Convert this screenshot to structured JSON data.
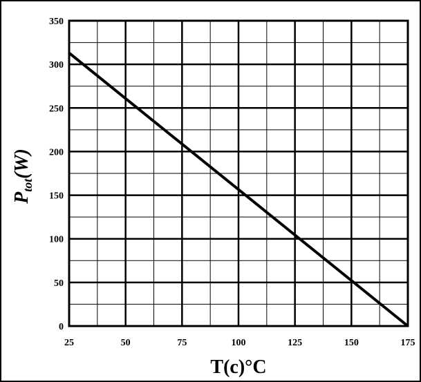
{
  "chart_data": {
    "type": "line",
    "x_ticks": [
      "25",
      "50",
      "75",
      "100",
      "125",
      "150",
      "175"
    ],
    "y_ticks": [
      "0",
      "50",
      "100",
      "150",
      "200",
      "250",
      "300",
      "350"
    ],
    "xlim": [
      25,
      175
    ],
    "ylim": [
      0,
      350
    ],
    "x_minor_step": 12.5,
    "y_minor_step": 25,
    "grid": true,
    "xlabel": "T(c)°C",
    "ylabel_main": "P",
    "ylabel_sub": "tot",
    "ylabel_unit": "(W)",
    "series": [
      {
        "x": [
          25,
          175
        ],
        "y": [
          313,
          0
        ]
      }
    ]
  }
}
